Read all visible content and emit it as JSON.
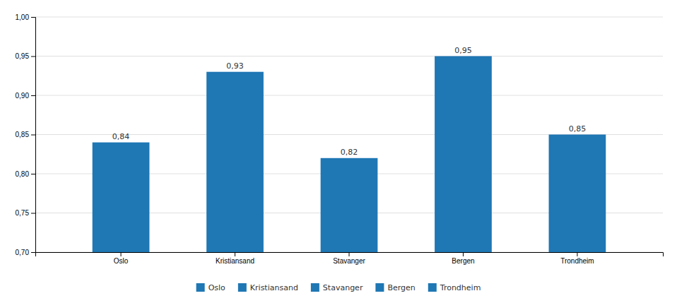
{
  "chart_data": {
    "type": "bar",
    "categories": [
      "Oslo",
      "Kristiansand",
      "Stavanger",
      "Bergen",
      "Trondheim"
    ],
    "values": [
      0.84,
      0.93,
      0.82,
      0.95,
      0.85
    ],
    "value_labels": [
      "0,84",
      "0,93",
      "0,82",
      "0,95",
      "0,85"
    ],
    "data_labels": true,
    "ylim": [
      0.7,
      1.0
    ],
    "yticks": [
      {
        "value": 0.7,
        "label": "0,70"
      },
      {
        "value": 0.75,
        "label": "0,75"
      },
      {
        "value": 0.8,
        "label": "0,80"
      },
      {
        "value": 0.85,
        "label": "0,85"
      },
      {
        "value": 0.9,
        "label": "0,90"
      },
      {
        "value": 0.95,
        "label": "0,95"
      },
      {
        "value": 1.0,
        "label": "1,00"
      }
    ],
    "grid": true,
    "legend": "bottom"
  }
}
